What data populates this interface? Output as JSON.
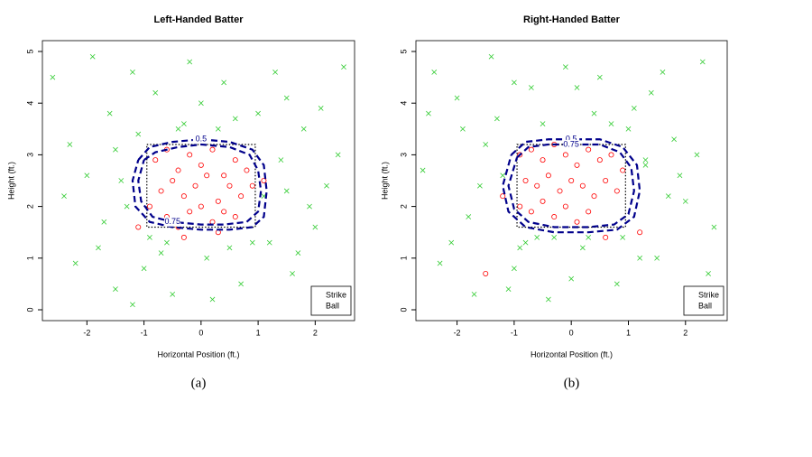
{
  "chart_data": [
    {
      "type": "scatter",
      "title": "Left-Handed Batter",
      "caption": "(a)",
      "xlabel": "Horizontal Position (ft.)",
      "ylabel": "Height (ft.)",
      "xlim": [
        -2.78,
        2.69
      ],
      "ylim": [
        -0.21,
        5.21
      ],
      "xticks": [
        -2,
        -1,
        0,
        1,
        2
      ],
      "yticks": [
        0,
        1,
        2,
        3,
        4,
        5
      ],
      "legend": "bottom-right",
      "series": [
        {
          "name": "Strike",
          "color": "#ff0000",
          "marker": "circle",
          "x": [
            -0.8,
            -0.6,
            -0.4,
            -0.2,
            0,
            0.2,
            0.4,
            0.6,
            0.8,
            -0.7,
            -0.5,
            -0.3,
            -0.1,
            0.1,
            0.3,
            0.5,
            0.7,
            -0.9,
            0.9,
            -0.6,
            -0.2,
            0.2,
            0.6,
            -0.4,
            0,
            0.4,
            -1.1,
            1.1,
            -0.3,
            0.3
          ],
          "y": [
            2.9,
            3.1,
            2.7,
            3.0,
            2.8,
            3.1,
            2.6,
            2.9,
            2.7,
            2.3,
            2.5,
            2.2,
            2.4,
            2.6,
            2.1,
            2.4,
            2.2,
            2.0,
            2.4,
            1.8,
            1.9,
            1.7,
            1.8,
            1.6,
            2.0,
            1.9,
            1.6,
            2.5,
            1.4,
            1.5
          ]
        },
        {
          "name": "Ball",
          "color": "#33cc33",
          "marker": "cross",
          "x": [
            -2.6,
            -2.3,
            -2.0,
            -1.8,
            -1.6,
            -1.5,
            -1.3,
            -1.2,
            -1.0,
            -0.8,
            -0.5,
            -0.2,
            0.1,
            0.4,
            0.7,
            1.0,
            1.2,
            1.4,
            1.6,
            1.8,
            2.0,
            2.2,
            2.5,
            -2.2,
            -1.9,
            -1.4,
            -1.1,
            -0.7,
            -0.3,
            0.2,
            0.6,
            1.1,
            1.5,
            1.9,
            2.4,
            -1.7,
            -1.2,
            -0.6,
            0,
            0.5,
            1.3,
            1.7,
            -2.4,
            2.1,
            -1.5,
            1.5,
            -0.9,
            0.9,
            -0.4,
            0.3
          ],
          "y": [
            4.5,
            3.2,
            2.6,
            1.2,
            3.8,
            0.4,
            2.0,
            4.6,
            0.8,
            4.2,
            0.3,
            4.8,
            1.0,
            4.4,
            0.5,
            3.8,
            1.3,
            2.9,
            0.7,
            3.5,
            1.6,
            2.4,
            4.7,
            0.9,
            4.9,
            2.5,
            3.4,
            1.1,
            3.6,
            0.2,
            3.7,
            2.2,
            4.1,
            2.0,
            3.0,
            1.7,
            0.1,
            1.3,
            4.0,
            1.2,
            4.6,
            1.1,
            2.2,
            3.9,
            3.1,
            2.3,
            1.4,
            1.3,
            3.5,
            3.5
          ]
        }
      ],
      "contours": [
        {
          "level": 0.5,
          "color": "#00008b",
          "x": [
            -1.1,
            -0.9,
            -0.5,
            0,
            0.5,
            0.9,
            1.1,
            1.15,
            1.1,
            0.9,
            0.5,
            0,
            -0.5,
            -0.9,
            -1.15,
            -1.2,
            -1.1
          ],
          "y": [
            2.9,
            3.15,
            3.25,
            3.3,
            3.25,
            3.1,
            2.8,
            2.3,
            1.8,
            1.6,
            1.55,
            1.55,
            1.6,
            1.7,
            2.0,
            2.5,
            2.9
          ]
        },
        {
          "level": 0.75,
          "color": "#00008b",
          "x": [
            -1.0,
            -0.8,
            -0.4,
            0,
            0.5,
            0.85,
            1.0,
            1.05,
            1.0,
            0.8,
            0.4,
            0,
            -0.5,
            -0.85,
            -1.05,
            -1.1,
            -1.0
          ],
          "y": [
            2.9,
            3.05,
            3.15,
            3.2,
            3.15,
            3.0,
            2.7,
            2.3,
            1.9,
            1.7,
            1.65,
            1.65,
            1.7,
            1.8,
            2.1,
            2.5,
            2.9
          ]
        }
      ],
      "strike_zone": {
        "x": [
          -0.95,
          0.95
        ],
        "y": [
          1.6,
          3.2
        ]
      }
    },
    {
      "type": "scatter",
      "title": "Right-Handed Batter",
      "caption": "(b)",
      "xlabel": "Horizontal Position (ft.)",
      "ylabel": "Height (ft.)",
      "xlim": [
        -2.72,
        2.73
      ],
      "ylim": [
        -0.21,
        5.21
      ],
      "xticks": [
        -2,
        -1,
        0,
        1,
        2
      ],
      "yticks": [
        0,
        1,
        2,
        3,
        4,
        5
      ],
      "legend": "bottom-right",
      "series": [
        {
          "name": "Strike",
          "color": "#ff0000",
          "marker": "circle",
          "x": [
            -0.9,
            -0.7,
            -0.5,
            -0.3,
            -0.1,
            0.1,
            0.3,
            0.5,
            0.7,
            0.9,
            -0.8,
            -0.6,
            -0.4,
            -0.2,
            0,
            0.2,
            0.4,
            0.6,
            0.8,
            -0.9,
            -0.7,
            -0.5,
            -0.3,
            -0.1,
            0.1,
            0.3,
            -1.2,
            1.2,
            -1.5,
            0.6
          ],
          "y": [
            3.0,
            3.1,
            2.9,
            3.2,
            3.0,
            2.8,
            3.1,
            2.9,
            3.0,
            2.7,
            2.5,
            2.4,
            2.6,
            2.3,
            2.5,
            2.4,
            2.2,
            2.5,
            2.3,
            2.0,
            1.9,
            2.1,
            1.8,
            2.0,
            1.7,
            1.9,
            2.2,
            1.5,
            0.7,
            1.4
          ]
        },
        {
          "name": "Ball",
          "color": "#33cc33",
          "marker": "cross",
          "x": [
            -2.6,
            -2.4,
            -2.1,
            -1.9,
            -1.7,
            -1.4,
            -1.2,
            -1.0,
            -0.7,
            -0.4,
            -0.1,
            0.2,
            0.5,
            0.8,
            1.1,
            1.3,
            1.5,
            1.8,
            2.0,
            2.3,
            2.5,
            -2.3,
            -2.0,
            -1.6,
            -1.3,
            -0.9,
            -0.5,
            0,
            0.4,
            0.9,
            1.4,
            1.7,
            2.2,
            -1.8,
            -1.1,
            -0.6,
            0.1,
            0.7,
            1.2,
            1.9,
            -2.5,
            2.4,
            -1.5,
            1.6,
            -0.8,
            1.0,
            -0.3,
            0.3,
            -1.0,
            1.3
          ],
          "y": [
            2.7,
            4.6,
            1.3,
            3.5,
            0.3,
            4.9,
            2.6,
            0.8,
            4.3,
            0.2,
            4.7,
            1.2,
            4.5,
            0.5,
            3.9,
            2.8,
            1.0,
            3.3,
            2.1,
            4.8,
            1.6,
            0.9,
            4.1,
            2.4,
            3.7,
            1.2,
            3.6,
            0.6,
            3.8,
            1.4,
            4.2,
            2.2,
            3.0,
            1.8,
            0.4,
            1.4,
            4.3,
            3.6,
            1.0,
            2.6,
            3.8,
            0.7,
            3.2,
            4.6,
            1.3,
            3.5,
            1.4,
            1.4,
            4.4,
            2.9
          ]
        }
      ],
      "contours": [
        {
          "level": 0.5,
          "color": "#00008b",
          "x": [
            -1.05,
            -0.8,
            -0.4,
            0,
            0.5,
            0.9,
            1.15,
            1.2,
            1.1,
            0.8,
            0.3,
            -0.3,
            -0.8,
            -1.1,
            -1.2,
            -1.05
          ],
          "y": [
            3.0,
            3.25,
            3.3,
            3.3,
            3.3,
            3.15,
            2.8,
            2.3,
            1.8,
            1.55,
            1.5,
            1.5,
            1.6,
            1.9,
            2.4,
            3.0
          ]
        },
        {
          "level": 0.75,
          "color": "#00008b",
          "x": [
            -0.95,
            -0.75,
            -0.4,
            0,
            0.5,
            0.85,
            1.05,
            1.1,
            1.0,
            0.75,
            0.3,
            -0.3,
            -0.75,
            -1.0,
            -1.1,
            -0.95
          ],
          "y": [
            2.95,
            3.15,
            3.2,
            3.2,
            3.2,
            3.05,
            2.75,
            2.3,
            1.85,
            1.65,
            1.6,
            1.6,
            1.7,
            1.95,
            2.4,
            2.95
          ]
        }
      ],
      "strike_zone": {
        "x": [
          -0.95,
          0.95
        ],
        "y": [
          1.6,
          3.2
        ]
      }
    }
  ]
}
